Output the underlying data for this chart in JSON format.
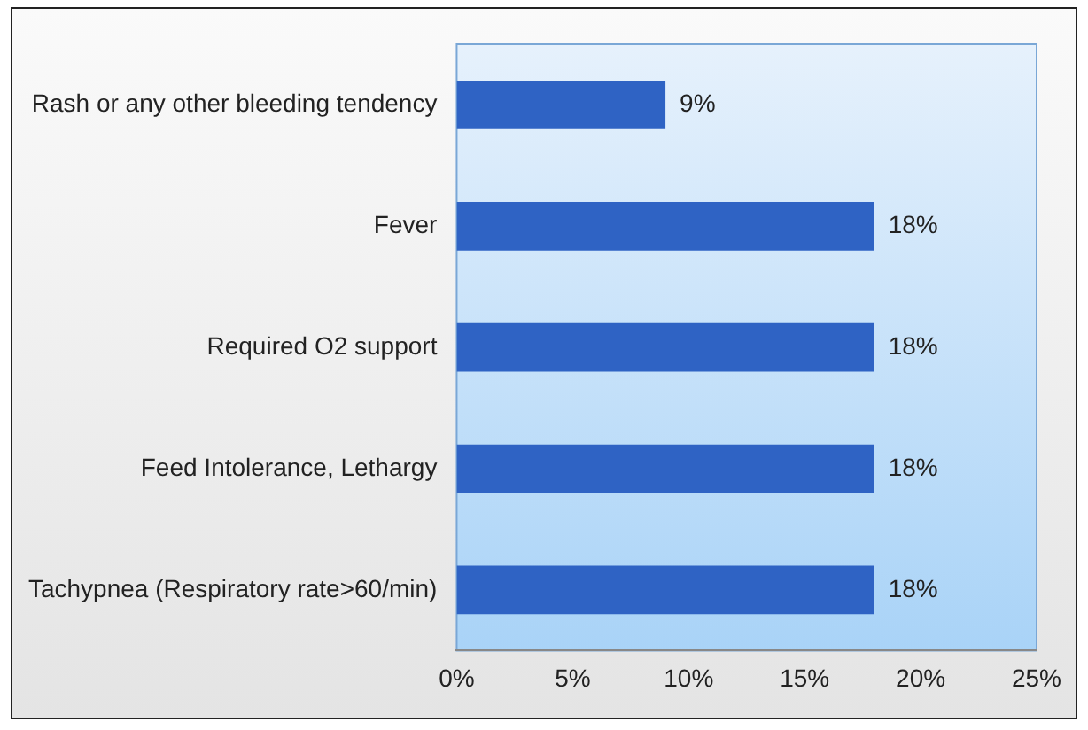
{
  "chart_data": {
    "type": "bar",
    "orientation": "horizontal",
    "categories": [
      "Rash or any other bleeding tendency",
      "Fever",
      "Required O2 support",
      "Feed Intolerance, Lethargy",
      "Tachypnea (Respiratory rate>60/min)"
    ],
    "values": [
      9,
      18,
      18,
      18,
      18
    ],
    "value_labels": [
      "9%",
      "18%",
      "18%",
      "18%",
      "18%"
    ],
    "color": "#2f63c4",
    "xlim": [
      0,
      25
    ],
    "xticks": [
      {
        "value": 0,
        "label": "0%"
      },
      {
        "value": 5,
        "label": "5%"
      },
      {
        "value": 10,
        "label": "10%"
      },
      {
        "value": 15,
        "label": "15%"
      },
      {
        "value": 20,
        "label": "20%"
      },
      {
        "value": 25,
        "label": "25%"
      }
    ],
    "grid": false
  }
}
